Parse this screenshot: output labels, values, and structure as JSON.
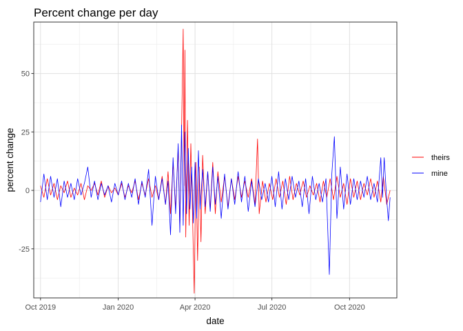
{
  "chart_data": {
    "type": "line",
    "title": "Percent change per day",
    "xlabel": "date",
    "ylabel": "percent change",
    "x_range": [
      "2019-09-23",
      "2020-11-26"
    ],
    "ylim": [
      -46,
      72
    ],
    "x_ticks": [
      {
        "date": "2019-10-01",
        "label": "Oct 2019"
      },
      {
        "date": "2020-01-01",
        "label": "Jan 2020"
      },
      {
        "date": "2020-04-01",
        "label": "Apr 2020"
      },
      {
        "date": "2020-07-01",
        "label": "Jul 2020"
      },
      {
        "date": "2020-10-01",
        "label": "Oct 2020"
      }
    ],
    "y_ticks": [
      -25,
      0,
      25,
      50
    ],
    "grid": true,
    "legend_position": "right",
    "series": [
      {
        "name": "theirs",
        "color": "#ff0000",
        "points": [
          [
            "2019-10-01",
            2
          ],
          [
            "2019-10-05",
            -3
          ],
          [
            "2019-10-09",
            5
          ],
          [
            "2019-10-13",
            -2
          ],
          [
            "2019-10-17",
            3
          ],
          [
            "2019-10-21",
            -4
          ],
          [
            "2019-10-25",
            2
          ],
          [
            "2019-10-29",
            -1
          ],
          [
            "2019-11-02",
            4
          ],
          [
            "2019-11-06",
            -3
          ],
          [
            "2019-11-10",
            1
          ],
          [
            "2019-11-14",
            -2
          ],
          [
            "2019-11-18",
            3
          ],
          [
            "2019-11-22",
            -4
          ],
          [
            "2019-11-26",
            2
          ],
          [
            "2019-11-30",
            0
          ],
          [
            "2019-12-04",
            3
          ],
          [
            "2019-12-08",
            -2
          ],
          [
            "2019-12-12",
            4
          ],
          [
            "2019-12-16",
            -3
          ],
          [
            "2019-12-20",
            2
          ],
          [
            "2019-12-24",
            -1
          ],
          [
            "2019-12-28",
            1
          ],
          [
            "2020-01-01",
            -2
          ],
          [
            "2020-01-05",
            3
          ],
          [
            "2020-01-09",
            -3
          ],
          [
            "2020-01-13",
            2
          ],
          [
            "2020-01-17",
            -1
          ],
          [
            "2020-01-21",
            4
          ],
          [
            "2020-01-25",
            -4
          ],
          [
            "2020-01-29",
            3
          ],
          [
            "2020-02-02",
            -2
          ],
          [
            "2020-02-06",
            5
          ],
          [
            "2020-02-10",
            -3
          ],
          [
            "2020-02-14",
            2
          ],
          [
            "2020-02-18",
            -4
          ],
          [
            "2020-02-22",
            6
          ],
          [
            "2020-02-26",
            -6
          ],
          [
            "2020-02-29",
            8
          ],
          [
            "2020-03-03",
            -10
          ],
          [
            "2020-03-06",
            12
          ],
          [
            "2020-03-09",
            -8
          ],
          [
            "2020-03-12",
            18
          ],
          [
            "2020-03-14",
            -16
          ],
          [
            "2020-03-16",
            25
          ],
          [
            "2020-03-18",
            69
          ],
          [
            "2020-03-19",
            2
          ],
          [
            "2020-03-20",
            60
          ],
          [
            "2020-03-21",
            -20
          ],
          [
            "2020-03-23",
            30
          ],
          [
            "2020-03-25",
            -15
          ],
          [
            "2020-03-27",
            20
          ],
          [
            "2020-03-29",
            -10
          ],
          [
            "2020-03-31",
            -44
          ],
          [
            "2020-04-02",
            12
          ],
          [
            "2020-04-04",
            -30
          ],
          [
            "2020-04-06",
            10
          ],
          [
            "2020-04-08",
            -22
          ],
          [
            "2020-04-10",
            15
          ],
          [
            "2020-04-13",
            -10
          ],
          [
            "2020-04-16",
            8
          ],
          [
            "2020-04-19",
            -8
          ],
          [
            "2020-04-22",
            12
          ],
          [
            "2020-04-25",
            -10
          ],
          [
            "2020-04-28",
            8
          ],
          [
            "2020-05-02",
            -5
          ],
          [
            "2020-05-06",
            6
          ],
          [
            "2020-05-10",
            -7
          ],
          [
            "2020-05-14",
            5
          ],
          [
            "2020-05-18",
            -4
          ],
          [
            "2020-05-22",
            6
          ],
          [
            "2020-05-26",
            -3
          ],
          [
            "2020-05-30",
            4
          ],
          [
            "2020-06-03",
            -3
          ],
          [
            "2020-06-07",
            5
          ],
          [
            "2020-06-11",
            -6
          ],
          [
            "2020-06-14",
            22
          ],
          [
            "2020-06-16",
            -10
          ],
          [
            "2020-06-20",
            4
          ],
          [
            "2020-06-24",
            -5
          ],
          [
            "2020-06-28",
            3
          ],
          [
            "2020-07-02",
            -4
          ],
          [
            "2020-07-06",
            5
          ],
          [
            "2020-07-10",
            -3
          ],
          [
            "2020-07-14",
            4
          ],
          [
            "2020-07-18",
            -6
          ],
          [
            "2020-07-22",
            6
          ],
          [
            "2020-07-26",
            -4
          ],
          [
            "2020-07-30",
            3
          ],
          [
            "2020-08-03",
            -2
          ],
          [
            "2020-08-07",
            4
          ],
          [
            "2020-08-11",
            -3
          ],
          [
            "2020-08-15",
            2
          ],
          [
            "2020-08-19",
            -2
          ],
          [
            "2020-08-23",
            3
          ],
          [
            "2020-08-27",
            -5
          ],
          [
            "2020-08-31",
            4
          ],
          [
            "2020-09-04",
            -3
          ],
          [
            "2020-09-08",
            5
          ],
          [
            "2020-09-12",
            -4
          ],
          [
            "2020-09-16",
            6
          ],
          [
            "2020-09-20",
            -3
          ],
          [
            "2020-09-24",
            3
          ],
          [
            "2020-09-28",
            -6
          ],
          [
            "2020-10-02",
            5
          ],
          [
            "2020-10-06",
            -3
          ],
          [
            "2020-10-10",
            4
          ],
          [
            "2020-10-14",
            -4
          ],
          [
            "2020-10-18",
            3
          ],
          [
            "2020-10-22",
            -2
          ],
          [
            "2020-10-26",
            5
          ],
          [
            "2020-10-30",
            -3
          ],
          [
            "2020-11-03",
            4
          ],
          [
            "2020-11-07",
            -5
          ],
          [
            "2020-11-10",
            6
          ],
          [
            "2020-11-14",
            -6
          ],
          [
            "2020-11-18",
            0
          ]
        ]
      },
      {
        "name": "mine",
        "color": "#0000ff",
        "points": [
          [
            "2019-10-01",
            -5
          ],
          [
            "2019-10-05",
            7
          ],
          [
            "2019-10-09",
            -4
          ],
          [
            "2019-10-13",
            6
          ],
          [
            "2019-10-17",
            -3
          ],
          [
            "2019-10-21",
            5
          ],
          [
            "2019-10-25",
            -7
          ],
          [
            "2019-10-29",
            4
          ],
          [
            "2019-11-02",
            -3
          ],
          [
            "2019-11-06",
            3
          ],
          [
            "2019-11-10",
            -4
          ],
          [
            "2019-11-14",
            5
          ],
          [
            "2019-11-18",
            -2
          ],
          [
            "2019-11-22",
            3
          ],
          [
            "2019-11-26",
            10
          ],
          [
            "2019-11-30",
            -3
          ],
          [
            "2019-12-04",
            4
          ],
          [
            "2019-12-08",
            -4
          ],
          [
            "2019-12-12",
            3
          ],
          [
            "2019-12-16",
            -2
          ],
          [
            "2019-12-20",
            2
          ],
          [
            "2019-12-24",
            -5
          ],
          [
            "2019-12-28",
            3
          ],
          [
            "2020-01-01",
            -2
          ],
          [
            "2020-01-05",
            4
          ],
          [
            "2020-01-09",
            -4
          ],
          [
            "2020-01-13",
            3
          ],
          [
            "2020-01-17",
            -3
          ],
          [
            "2020-01-21",
            5
          ],
          [
            "2020-01-25",
            -6
          ],
          [
            "2020-01-29",
            4
          ],
          [
            "2020-02-02",
            -3
          ],
          [
            "2020-02-06",
            9
          ],
          [
            "2020-02-10",
            -15
          ],
          [
            "2020-02-14",
            6
          ],
          [
            "2020-02-18",
            -4
          ],
          [
            "2020-02-22",
            5
          ],
          [
            "2020-02-26",
            -6
          ],
          [
            "2020-02-29",
            4
          ],
          [
            "2020-03-03",
            -19
          ],
          [
            "2020-03-06",
            14
          ],
          [
            "2020-03-09",
            -10
          ],
          [
            "2020-03-12",
            20
          ],
          [
            "2020-03-14",
            -18
          ],
          [
            "2020-03-16",
            28
          ],
          [
            "2020-03-18",
            -15
          ],
          [
            "2020-03-20",
            25
          ],
          [
            "2020-03-22",
            -10
          ],
          [
            "2020-03-24",
            18
          ],
          [
            "2020-03-26",
            -8
          ],
          [
            "2020-03-28",
            10
          ],
          [
            "2020-03-30",
            -14
          ],
          [
            "2020-04-01",
            12
          ],
          [
            "2020-04-03",
            -12
          ],
          [
            "2020-04-05",
            17
          ],
          [
            "2020-04-07",
            -8
          ],
          [
            "2020-04-10",
            9
          ],
          [
            "2020-04-13",
            -7
          ],
          [
            "2020-04-16",
            8
          ],
          [
            "2020-04-19",
            -9
          ],
          [
            "2020-04-22",
            10
          ],
          [
            "2020-04-25",
            -6
          ],
          [
            "2020-04-28",
            6
          ],
          [
            "2020-05-02",
            -12
          ],
          [
            "2020-05-06",
            7
          ],
          [
            "2020-05-10",
            -8
          ],
          [
            "2020-05-14",
            5
          ],
          [
            "2020-05-18",
            -6
          ],
          [
            "2020-05-22",
            8
          ],
          [
            "2020-05-26",
            -5
          ],
          [
            "2020-05-30",
            6
          ],
          [
            "2020-06-03",
            -9
          ],
          [
            "2020-06-07",
            4
          ],
          [
            "2020-06-11",
            -7
          ],
          [
            "2020-06-15",
            5
          ],
          [
            "2020-06-19",
            -4
          ],
          [
            "2020-06-23",
            3
          ],
          [
            "2020-06-27",
            -5
          ],
          [
            "2020-07-01",
            6
          ],
          [
            "2020-07-05",
            -7
          ],
          [
            "2020-07-09",
            8
          ],
          [
            "2020-07-13",
            -8
          ],
          [
            "2020-07-17",
            5
          ],
          [
            "2020-07-21",
            -4
          ],
          [
            "2020-07-25",
            6
          ],
          [
            "2020-07-29",
            -3
          ],
          [
            "2020-08-02",
            4
          ],
          [
            "2020-08-06",
            -7
          ],
          [
            "2020-08-10",
            5
          ],
          [
            "2020-08-14",
            -10
          ],
          [
            "2020-08-18",
            6
          ],
          [
            "2020-08-22",
            -4
          ],
          [
            "2020-08-26",
            3
          ],
          [
            "2020-08-30",
            -5
          ],
          [
            "2020-09-03",
            5
          ],
          [
            "2020-09-07",
            -36
          ],
          [
            "2020-09-10",
            7
          ],
          [
            "2020-09-13",
            23
          ],
          [
            "2020-09-16",
            -12
          ],
          [
            "2020-09-20",
            10
          ],
          [
            "2020-09-24",
            -8
          ],
          [
            "2020-09-28",
            7
          ],
          [
            "2020-10-02",
            -6
          ],
          [
            "2020-10-06",
            5
          ],
          [
            "2020-10-10",
            -4
          ],
          [
            "2020-10-14",
            4
          ],
          [
            "2020-10-18",
            -3
          ],
          [
            "2020-10-22",
            6
          ],
          [
            "2020-10-26",
            -4
          ],
          [
            "2020-10-30",
            3
          ],
          [
            "2020-11-03",
            -5
          ],
          [
            "2020-11-07",
            14
          ],
          [
            "2020-11-09",
            -3
          ],
          [
            "2020-11-11",
            14
          ],
          [
            "2020-11-14",
            -4
          ],
          [
            "2020-11-16",
            -13
          ],
          [
            "2020-11-18",
            -3
          ]
        ]
      }
    ]
  }
}
